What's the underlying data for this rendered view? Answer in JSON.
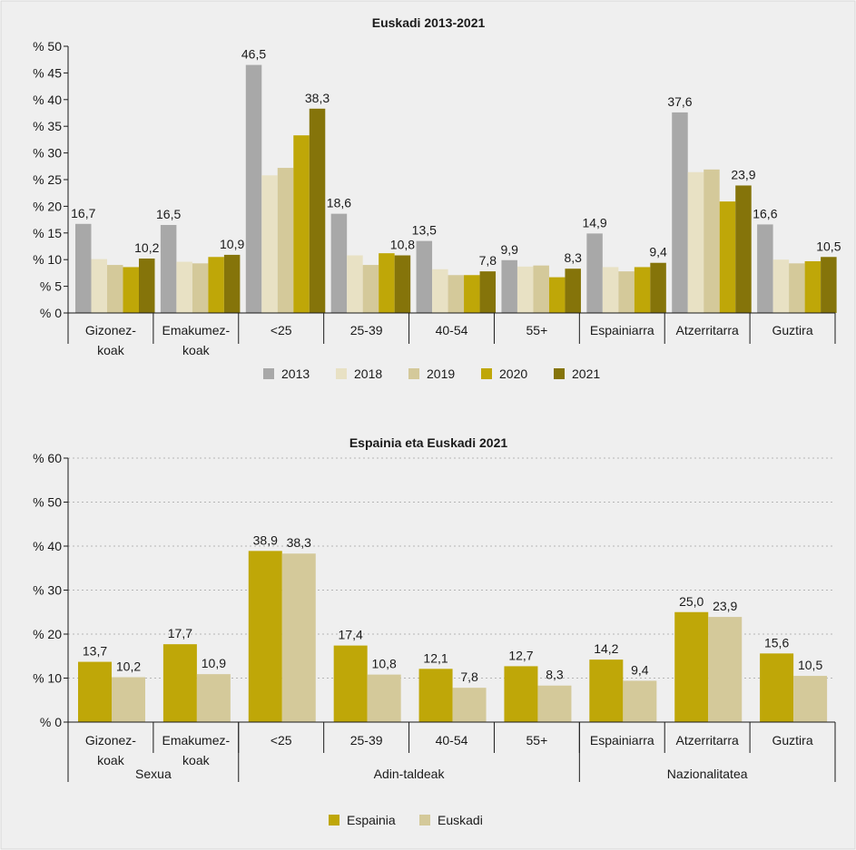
{
  "chart_data": [
    {
      "type": "bar",
      "title": "Euskadi 2013-2021",
      "categories": [
        [
          "Gizonez-",
          "koak"
        ],
        [
          "Emakumez-",
          "koak"
        ],
        [
          "<25"
        ],
        [
          "25-39"
        ],
        [
          "40-54"
        ],
        [
          "55+"
        ],
        [
          "Espainiarra"
        ],
        [
          "Atzerritarra"
        ],
        [
          "Guztira"
        ]
      ],
      "series": [
        {
          "name": "2013",
          "color": "#a8a8a8",
          "values": [
            16.7,
            16.5,
            46.5,
            18.6,
            13.5,
            9.9,
            14.9,
            37.6,
            16.6
          ]
        },
        {
          "name": "2018",
          "color": "#e8e1c4",
          "values": [
            10.1,
            9.6,
            25.8,
            10.8,
            8.2,
            8.7,
            8.6,
            26.4,
            10.0
          ]
        },
        {
          "name": "2019",
          "color": "#d4c99a",
          "values": [
            9.0,
            9.3,
            27.2,
            9.0,
            7.1,
            8.9,
            7.8,
            26.9,
            9.3
          ]
        },
        {
          "name": "2020",
          "color": "#bfa708",
          "values": [
            8.6,
            10.5,
            33.3,
            11.2,
            7.1,
            6.7,
            8.6,
            20.9,
            9.7
          ]
        },
        {
          "name": "2021",
          "color": "#85740a",
          "values": [
            10.2,
            10.9,
            38.3,
            10.8,
            7.8,
            8.3,
            9.4,
            23.9,
            10.5
          ]
        }
      ],
      "labels": [
        {
          "series": 0,
          "cat": 0,
          "text": "16,7"
        },
        {
          "series": 4,
          "cat": 0,
          "text": "10,2"
        },
        {
          "series": 0,
          "cat": 1,
          "text": "16,5"
        },
        {
          "series": 4,
          "cat": 1,
          "text": "10,9"
        },
        {
          "series": 0,
          "cat": 2,
          "text": "46,5"
        },
        {
          "series": 4,
          "cat": 2,
          "text": "38,3"
        },
        {
          "series": 0,
          "cat": 3,
          "text": "18,6"
        },
        {
          "series": 4,
          "cat": 3,
          "text": "10,8"
        },
        {
          "series": 0,
          "cat": 4,
          "text": "13,5"
        },
        {
          "series": 4,
          "cat": 4,
          "text": "7,8"
        },
        {
          "series": 0,
          "cat": 5,
          "text": "9,9"
        },
        {
          "series": 4,
          "cat": 5,
          "text": "8,3"
        },
        {
          "series": 0,
          "cat": 6,
          "text": "14,9"
        },
        {
          "series": 4,
          "cat": 6,
          "text": "9,4"
        },
        {
          "series": 0,
          "cat": 7,
          "text": "37,6"
        },
        {
          "series": 4,
          "cat": 7,
          "text": "23,9"
        },
        {
          "series": 0,
          "cat": 8,
          "text": "16,6"
        },
        {
          "series": 4,
          "cat": 8,
          "text": "10,5"
        }
      ],
      "ylim": [
        0,
        50
      ],
      "yticks": [
        {
          "value": 0,
          "label": "% 0"
        },
        {
          "value": 5,
          "label": "% 5"
        },
        {
          "value": 10,
          "label": "% 10"
        },
        {
          "value": 15,
          "label": "% 15"
        },
        {
          "value": 20,
          "label": "% 20"
        },
        {
          "value": 25,
          "label": "% 25"
        },
        {
          "value": 30,
          "label": "% 30"
        },
        {
          "value": 35,
          "label": "% 35"
        },
        {
          "value": 40,
          "label": "% 40"
        },
        {
          "value": 45,
          "label": "% 45"
        },
        {
          "value": 50,
          "label": "% 50"
        }
      ],
      "grid": false,
      "legend": "bottom"
    },
    {
      "type": "bar",
      "title": "Espainia eta Euskadi 2021",
      "categories": [
        [
          "Gizonez-",
          "koak"
        ],
        [
          "Emakumez-",
          "koak"
        ],
        [
          "<25"
        ],
        [
          "25-39"
        ],
        [
          "40-54"
        ],
        [
          "55+"
        ],
        [
          "Espainiarra"
        ],
        [
          "Atzerritarra"
        ],
        [
          "Guztira"
        ]
      ],
      "groups": [
        {
          "label": "Sexua",
          "from": 0,
          "to": 1
        },
        {
          "label": "Adin-taldeak",
          "from": 2,
          "to": 5
        },
        {
          "label": "Nazionalitatea",
          "from": 6,
          "to": 8
        }
      ],
      "series": [
        {
          "name": "Espainia",
          "color": "#bfa708",
          "values": [
            13.7,
            17.7,
            38.9,
            17.4,
            12.1,
            12.7,
            14.2,
            25.0,
            15.6
          ]
        },
        {
          "name": "Euskadi",
          "color": "#d4c99a",
          "values": [
            10.2,
            10.9,
            38.3,
            10.8,
            7.8,
            8.3,
            9.4,
            23.9,
            10.5
          ]
        }
      ],
      "labels": [
        {
          "series": 0,
          "cat": 0,
          "text": "13,7"
        },
        {
          "series": 1,
          "cat": 0,
          "text": "10,2"
        },
        {
          "series": 0,
          "cat": 1,
          "text": "17,7"
        },
        {
          "series": 1,
          "cat": 1,
          "text": "10,9"
        },
        {
          "series": 0,
          "cat": 2,
          "text": "38,9"
        },
        {
          "series": 1,
          "cat": 2,
          "text": "38,3"
        },
        {
          "series": 0,
          "cat": 3,
          "text": "17,4"
        },
        {
          "series": 1,
          "cat": 3,
          "text": "10,8"
        },
        {
          "series": 0,
          "cat": 4,
          "text": "12,1"
        },
        {
          "series": 1,
          "cat": 4,
          "text": "7,8"
        },
        {
          "series": 0,
          "cat": 5,
          "text": "12,7"
        },
        {
          "series": 1,
          "cat": 5,
          "text": "8,3"
        },
        {
          "series": 0,
          "cat": 6,
          "text": "14,2"
        },
        {
          "series": 1,
          "cat": 6,
          "text": "9,4"
        },
        {
          "series": 0,
          "cat": 7,
          "text": "25,0"
        },
        {
          "series": 1,
          "cat": 7,
          "text": "23,9"
        },
        {
          "series": 0,
          "cat": 8,
          "text": "15,6"
        },
        {
          "series": 1,
          "cat": 8,
          "text": "10,5"
        }
      ],
      "ylim": [
        0,
        60
      ],
      "yticks": [
        {
          "value": 0,
          "label": "% 0"
        },
        {
          "value": 10,
          "label": "% 10"
        },
        {
          "value": 20,
          "label": "% 20"
        },
        {
          "value": 30,
          "label": "% 30"
        },
        {
          "value": 40,
          "label": "% 40"
        },
        {
          "value": 50,
          "label": "% 50"
        },
        {
          "value": 60,
          "label": "% 60"
        }
      ],
      "grid": true,
      "legend": "bottom"
    }
  ]
}
